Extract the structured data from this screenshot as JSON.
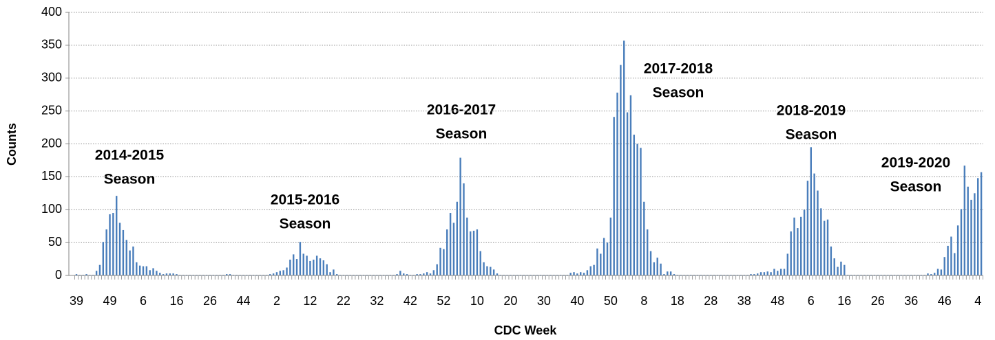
{
  "chart_data": {
    "type": "bar",
    "x_label": "CDC Week",
    "y_label": "Counts",
    "color": "#4a7ebb",
    "grid": true,
    "ylim": [
      0,
      400
    ],
    "yticks": [
      0,
      50,
      100,
      150,
      200,
      250,
      300,
      350,
      400
    ],
    "annotations": [
      {
        "label": "2014-2015",
        "sub": "Season"
      },
      {
        "label": "2015-2016",
        "sub": "Season"
      },
      {
        "label": "2016-2017",
        "sub": "Season"
      },
      {
        "label": "2017-2018",
        "sub": "Season"
      },
      {
        "label": "2018-2019",
        "sub": "Season"
      },
      {
        "label": "2019-2020",
        "sub": "Season"
      }
    ],
    "categories": [
      "39",
      null,
      null,
      null,
      null,
      null,
      null,
      null,
      null,
      null,
      "49",
      null,
      null,
      null,
      null,
      null,
      null,
      null,
      null,
      null,
      "6",
      null,
      null,
      null,
      null,
      null,
      null,
      null,
      null,
      null,
      "16",
      null,
      null,
      null,
      null,
      null,
      null,
      null,
      null,
      null,
      "26",
      null,
      null,
      null,
      null,
      null,
      null,
      null,
      null,
      null,
      "44",
      null,
      null,
      null,
      null,
      null,
      null,
      null,
      null,
      null,
      "2",
      null,
      null,
      null,
      null,
      null,
      null,
      null,
      null,
      null,
      "12",
      null,
      null,
      null,
      null,
      null,
      null,
      null,
      null,
      null,
      "22",
      null,
      null,
      null,
      null,
      null,
      null,
      null,
      null,
      null,
      "32",
      null,
      null,
      null,
      null,
      null,
      null,
      null,
      null,
      null,
      "42",
      null,
      null,
      null,
      null,
      null,
      null,
      null,
      null,
      null,
      "52",
      null,
      null,
      null,
      null,
      null,
      null,
      null,
      null,
      null,
      "10",
      null,
      null,
      null,
      null,
      null,
      null,
      null,
      null,
      null,
      "20",
      null,
      null,
      null,
      null,
      null,
      null,
      null,
      null,
      null,
      "30",
      null,
      null,
      null,
      null,
      null,
      null,
      null,
      null,
      null,
      "40",
      null,
      null,
      null,
      null,
      null,
      null,
      null,
      null,
      null,
      "50",
      null,
      null,
      null,
      null,
      null,
      null,
      null,
      null,
      null,
      "8",
      null,
      null,
      null,
      null,
      null,
      null,
      null,
      null,
      null,
      "18",
      null,
      null,
      null,
      null,
      null,
      null,
      null,
      null,
      null,
      "28",
      null,
      null,
      null,
      null,
      null,
      null,
      null,
      null,
      null,
      "38",
      null,
      null,
      null,
      null,
      null,
      null,
      null,
      null,
      null,
      "48",
      null,
      null,
      null,
      null,
      null,
      null,
      null,
      null,
      null,
      "6",
      null,
      null,
      null,
      null,
      null,
      null,
      null,
      null,
      null,
      "16",
      null,
      null,
      null,
      null,
      null,
      null,
      null,
      null,
      null,
      "26",
      null,
      null,
      null,
      null,
      null,
      null,
      null,
      null,
      null,
      "36",
      null,
      null,
      null,
      null,
      null,
      null,
      null,
      null,
      null,
      "46",
      null,
      null,
      null,
      null,
      null,
      null,
      null,
      null,
      null,
      "4",
      null
    ],
    "values": [
      2,
      1,
      1,
      2,
      1,
      1,
      7,
      16,
      51,
      70,
      93,
      95,
      121,
      80,
      69,
      54,
      38,
      44,
      20,
      15,
      14,
      14,
      8,
      11,
      7,
      4,
      2,
      3,
      3,
      3,
      2,
      1,
      1,
      1,
      1,
      1,
      1,
      1,
      1,
      1,
      1,
      1,
      1,
      1,
      1,
      2,
      2,
      1,
      1,
      1,
      1,
      1,
      1,
      1,
      1,
      1,
      1,
      1,
      2,
      3,
      5,
      7,
      8,
      12,
      24,
      32,
      25,
      51,
      33,
      30,
      22,
      24,
      30,
      26,
      23,
      17,
      5,
      9,
      2,
      1,
      1,
      1,
      1,
      1,
      1,
      1,
      1,
      1,
      1,
      1,
      1,
      1,
      1,
      1,
      1,
      1,
      2,
      7,
      3,
      2,
      1,
      1,
      2,
      2,
      3,
      5,
      3,
      8,
      17,
      42,
      40,
      70,
      95,
      80,
      112,
      179,
      140,
      88,
      67,
      68,
      70,
      37,
      20,
      14,
      13,
      9,
      3,
      1,
      1,
      1,
      1,
      1,
      1,
      1,
      1,
      1,
      1,
      1,
      1,
      1,
      1,
      1,
      1,
      1,
      1,
      1,
      1,
      1,
      4,
      5,
      3,
      5,
      4,
      8,
      14,
      16,
      41,
      33,
      57,
      50,
      88,
      241,
      278,
      320,
      357,
      248,
      274,
      214,
      200,
      194,
      112,
      70,
      37,
      20,
      27,
      18,
      2,
      6,
      6,
      2,
      1,
      1,
      1,
      1,
      1,
      1,
      1,
      1,
      1,
      1,
      1,
      1,
      1,
      1,
      1,
      1,
      1,
      1,
      1,
      1,
      1,
      1,
      2,
      2,
      3,
      5,
      5,
      6,
      5,
      10,
      7,
      10,
      10,
      33,
      67,
      88,
      72,
      89,
      100,
      144,
      195,
      155,
      129,
      102,
      83,
      85,
      44,
      26,
      13,
      21,
      16,
      1,
      1,
      1,
      1,
      1,
      1,
      1,
      1,
      1,
      1,
      1,
      1,
      1,
      1,
      1,
      1,
      1,
      1,
      1,
      1,
      1,
      1,
      1,
      1,
      3,
      2,
      4,
      10,
      9,
      28,
      45,
      59,
      34,
      76,
      101,
      167,
      135,
      115,
      125,
      148,
      157
    ]
  }
}
